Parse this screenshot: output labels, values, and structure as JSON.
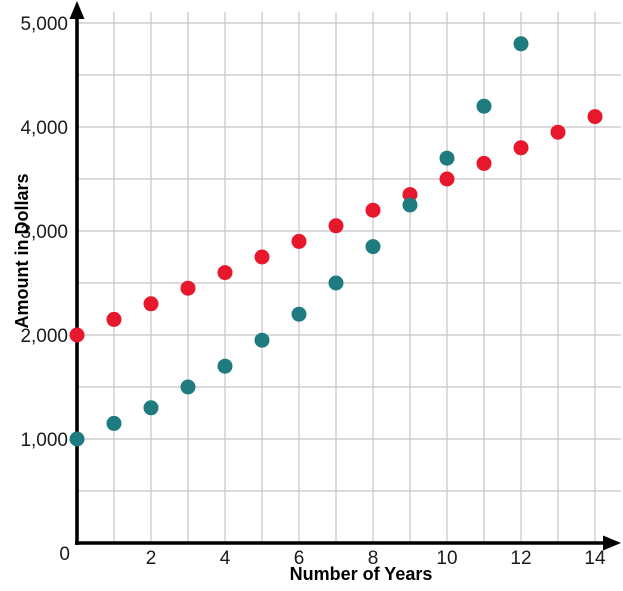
{
  "chart_data": {
    "type": "scatter",
    "title": "",
    "xlabel": "Number of Years",
    "ylabel": "Amount in Dollars",
    "xlim": [
      0,
      14
    ],
    "ylim": [
      0,
      5000
    ],
    "x_ticks": [
      0,
      2,
      4,
      6,
      8,
      10,
      12,
      14
    ],
    "x_tick_labels": [
      "0",
      "2",
      "4",
      "6",
      "8",
      "10",
      "12",
      "14"
    ],
    "y_ticks": [
      0,
      1000,
      2000,
      3000,
      4000,
      5000
    ],
    "y_tick_labels": [
      "0",
      "1,000",
      "2,000",
      "3,000",
      "4,000",
      "5,000"
    ],
    "origin_label": "0",
    "grid": {
      "show": true,
      "x_step": 1,
      "y_step": 500,
      "color": "#c4c4c4"
    },
    "axis_color": "#000000",
    "series": [
      {
        "name": "red-series",
        "color": "#e8182c",
        "marker": "circle",
        "points": [
          [
            0,
            2000
          ],
          [
            1,
            2150
          ],
          [
            2,
            2300
          ],
          [
            3,
            2450
          ],
          [
            4,
            2600
          ],
          [
            5,
            2750
          ],
          [
            6,
            2900
          ],
          [
            7,
            3050
          ],
          [
            8,
            3200
          ],
          [
            9,
            3350
          ],
          [
            10,
            3500
          ],
          [
            11,
            3650
          ],
          [
            12,
            3800
          ],
          [
            13,
            3950
          ],
          [
            14,
            4100
          ]
        ]
      },
      {
        "name": "teal-series",
        "color": "#1e7b80",
        "marker": "circle",
        "points": [
          [
            0,
            1000
          ],
          [
            1,
            1150
          ],
          [
            2,
            1300
          ],
          [
            3,
            1500
          ],
          [
            4,
            1700
          ],
          [
            5,
            1950
          ],
          [
            6,
            2200
          ],
          [
            7,
            2500
          ],
          [
            8,
            2850
          ],
          [
            9,
            3250
          ],
          [
            10,
            3700
          ],
          [
            11,
            4200
          ],
          [
            12,
            4800
          ]
        ]
      }
    ]
  }
}
